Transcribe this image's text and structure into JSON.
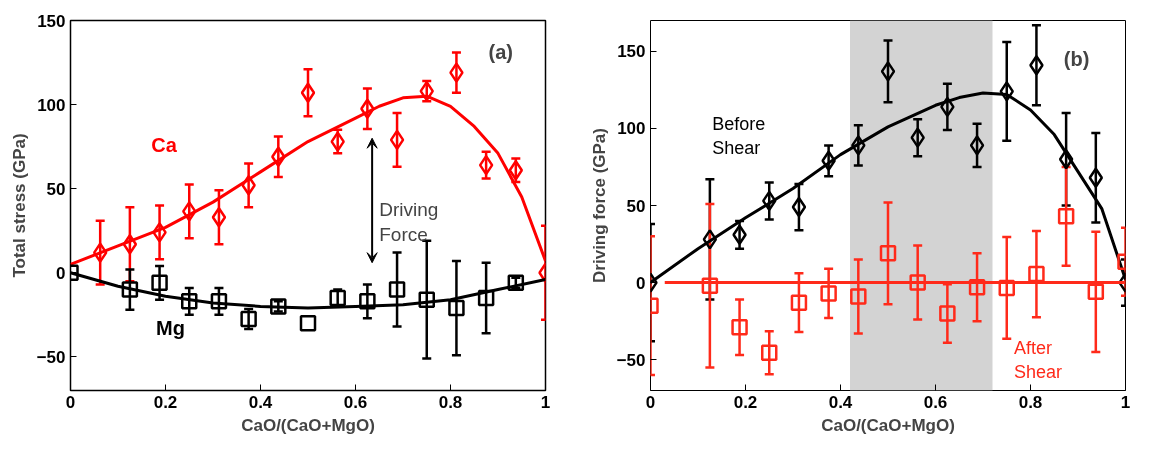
{
  "chart_data": [
    {
      "type": "scatter",
      "xlabel": "CaO/(CaO+MgO)",
      "ylabel": "Total stress (GPa)",
      "xlim": [
        0,
        1
      ],
      "ylim": [
        -70,
        150
      ],
      "xticks": [
        0,
        0.2,
        0.4,
        0.6,
        0.8,
        1
      ],
      "yticks": [
        {
          "value": -50,
          "label": "−50"
        },
        0,
        50,
        100,
        150
      ],
      "grid": false,
      "annotations": [
        "(a)",
        "Driving Force"
      ],
      "series": [
        {
          "name": "Ca",
          "type": "scatter",
          "marker": "diamond",
          "color": "#ff0000",
          "x": [
            0.0625,
            0.125,
            0.1875,
            0.25,
            0.3125,
            0.375,
            0.4375,
            0.5,
            0.5625,
            0.625,
            0.6875,
            0.75,
            0.8125,
            0.875,
            0.9375,
            1.0
          ],
          "values": [
            12,
            17,
            24,
            36.5,
            33,
            52,
            69,
            107,
            78,
            97.5,
            79,
            108,
            119,
            64,
            61,
            0
          ],
          "errors": [
            19,
            22,
            16,
            16,
            16,
            13,
            12,
            14,
            7,
            12,
            16,
            6,
            12,
            8,
            7,
            28
          ]
        },
        {
          "type": "line",
          "color": "#ff0000",
          "x": [
            0,
            0.1,
            0.2,
            0.3,
            0.4,
            0.5,
            0.6,
            0.65,
            0.7,
            0.75,
            0.8,
            0.85,
            0.9,
            0.95,
            1.0
          ],
          "values": [
            5,
            16,
            27,
            42,
            60,
            78,
            92,
            99,
            104,
            105,
            99,
            87,
            71,
            45,
            7
          ]
        },
        {
          "name": "Mg",
          "type": "scatter",
          "marker": "square",
          "color": "#000000",
          "x": [
            0,
            0.125,
            0.1875,
            0.25,
            0.3125,
            0.375,
            0.4375,
            0.5,
            0.5625,
            0.625,
            0.6875,
            0.75,
            0.8125,
            0.875,
            0.9375
          ],
          "values": [
            0,
            -10,
            -6,
            -17,
            -17,
            -27.5,
            -20,
            -30,
            -15,
            -17,
            -10,
            -16,
            -21,
            -15,
            -6
          ],
          "errors": [
            null,
            12,
            10,
            8,
            8,
            6,
            3,
            null,
            5,
            10,
            22,
            35,
            28,
            21,
            3
          ]
        },
        {
          "type": "line",
          "color": "#000000",
          "x": [
            0,
            0.1,
            0.2,
            0.3,
            0.4,
            0.5,
            0.6,
            0.7,
            0.8,
            0.9,
            1.0
          ],
          "values": [
            0,
            -8,
            -14,
            -18,
            -20,
            -21,
            -20,
            -19,
            -16,
            -10,
            -4
          ]
        }
      ]
    },
    {
      "type": "scatter",
      "xlabel": "CaO/(CaO+MgO)",
      "ylabel": "Driving force (GPa)",
      "xlim": [
        0,
        1
      ],
      "ylim": [
        -70,
        170
      ],
      "xticks": [
        0,
        0.2,
        0.4,
        0.6,
        0.8,
        1
      ],
      "yticks": [
        -50,
        0,
        50,
        100,
        150
      ],
      "grid": false,
      "annotations": [
        "(b)"
      ],
      "bands": [
        {
          "axis": "x",
          "from": 0.42,
          "to": 0.72,
          "color": "#d3d3d3"
        }
      ],
      "series": [
        {
          "name": "Before Shear",
          "type": "scatter",
          "marker": "diamond",
          "color": "#000000",
          "x": [
            0,
            0.125,
            0.1875,
            0.25,
            0.3125,
            0.375,
            0.4375,
            0.5,
            0.5625,
            0.625,
            0.6875,
            0.75,
            0.8125,
            0.875,
            0.9375,
            1.0
          ],
          "values": [
            0,
            28,
            31,
            53,
            49,
            79,
            89,
            137,
            94,
            114,
            89,
            124,
            141,
            80,
            68,
            0
          ],
          "errors": [
            38,
            39,
            9,
            12,
            15,
            10,
            13,
            20,
            12,
            15,
            14,
            32,
            26,
            30,
            29,
            15
          ]
        },
        {
          "type": "line",
          "color": "#000000",
          "x": [
            0,
            0.1,
            0.2,
            0.3,
            0.4,
            0.5,
            0.6,
            0.65,
            0.7,
            0.75,
            0.8,
            0.85,
            0.9,
            0.95,
            1.0
          ],
          "values": [
            0,
            22,
            42,
            61,
            83,
            101,
            115,
            120,
            123,
            122,
            112,
            96,
            72,
            48,
            2
          ]
        },
        {
          "name": "After Shear",
          "type": "scatter",
          "marker": "square",
          "color": "#ff2a1a",
          "x": [
            0,
            0.125,
            0.1875,
            0.25,
            0.3125,
            0.375,
            0.4375,
            0.5,
            0.5625,
            0.625,
            0.6875,
            0.75,
            0.8125,
            0.875,
            0.9375,
            1.0
          ],
          "values": [
            -15,
            -2,
            -29,
            -45.5,
            -13,
            -7,
            -9,
            19,
            0,
            -20,
            -3,
            -3.5,
            5.5,
            43,
            -6,
            13.5
          ],
          "errors": [
            45,
            53,
            18,
            14,
            19,
            16,
            24,
            33,
            24,
            19,
            22,
            33,
            28,
            32,
            39,
            22
          ]
        },
        {
          "type": "line",
          "color": "#ff2a1a",
          "x": [
            0.03,
            1.0
          ],
          "values": [
            0,
            0
          ]
        }
      ]
    }
  ]
}
